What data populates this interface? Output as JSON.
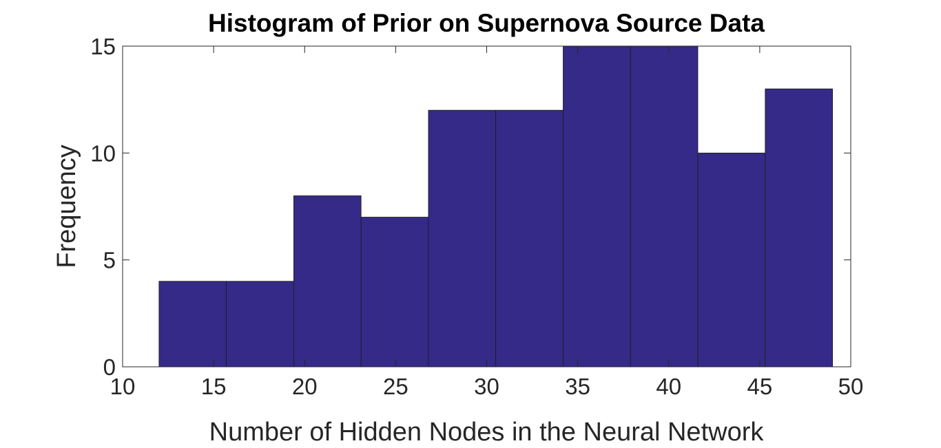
{
  "chart_data": {
    "type": "bar",
    "title": "Histogram of Prior on Supernova Source Data",
    "xlabel": "Number of Hidden Nodes in the Neural Network",
    "ylabel": "Frequency",
    "xlim": [
      10,
      50
    ],
    "ylim": [
      0,
      15
    ],
    "xticks": [
      "10",
      "15",
      "20",
      "25",
      "30",
      "35",
      "40",
      "45",
      "50"
    ],
    "yticks": [
      "0",
      "5",
      "10",
      "15"
    ],
    "bin_edges": [
      12.0,
      15.7,
      19.4,
      23.1,
      26.8,
      30.5,
      34.2,
      37.9,
      41.6,
      45.3,
      49.0
    ],
    "values": [
      4,
      4,
      8,
      7,
      12,
      12,
      15,
      15,
      10,
      13
    ],
    "bar_color": "#352A87",
    "grid": false
  }
}
